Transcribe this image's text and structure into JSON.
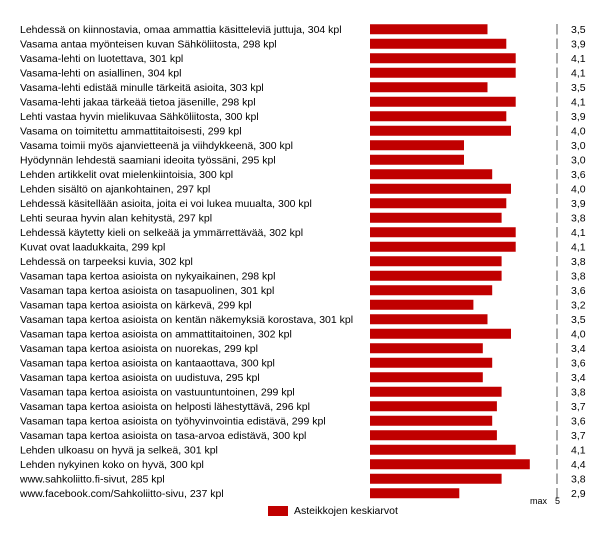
{
  "chart_data": {
    "type": "bar",
    "orientation": "horizontal",
    "categories": [
      "Lehdessä on kiinnostavia, omaa ammattia käsitteleviä juttuja, 304 kpl",
      "Vasama antaa myönteisen kuvan Sähköliitosta, 298 kpl",
      "Vasama-lehti on luotettava, 301 kpl",
      "Vasama-lehti on asiallinen, 304 kpl",
      "Vasama-lehti edistää minulle tärkeitä asioita, 303 kpl",
      "Vasama-lehti jakaa tärkeää tietoa jäsenille, 298 kpl",
      "Lehti vastaa hyvin mielikuvaa Sähköliitosta, 300 kpl",
      "Vasama on toimitettu ammattitaitoisesti, 299 kpl",
      "Vasama toimii myös ajanvietteenä ja viihdykkeenä, 300 kpl",
      "Hyödynnän lehdestä saamiani ideoita työssäni, 295 kpl",
      "Lehden artikkelit ovat mielenkiintoisia, 300 kpl",
      "Lehden sisältö on ajankohtainen, 297 kpl",
      "Lehdessä käsitellään asioita, joita ei voi lukea muualta, 300 kpl",
      "Lehti seuraa hyvin alan kehitystä, 297 kpl",
      "Lehdessä käytetty kieli on selkeää ja ymmärrettävää, 302 kpl",
      "Kuvat ovat laadukkaita, 299 kpl",
      "Lehdessä on tarpeeksi kuvia, 302 kpl",
      "Vasaman tapa kertoa asioista on nykyaikainen, 298 kpl",
      "Vasaman tapa kertoa asioista on tasapuolinen, 301 kpl",
      "Vasaman tapa kertoa asioista on kärkevä, 299 kpl",
      "Vasaman tapa kertoa asioista on kentän näkemyksiä korostava, 301 kpl",
      "Vasaman tapa kertoa asioista on ammattitaitoinen, 302 kpl",
      "Vasaman tapa kertoa asioista on nuorekas, 299 kpl",
      "Vasaman tapa kertoa asioista on kantaaottava, 300 kpl",
      "Vasaman tapa kertoa asioista on uudistuva, 295 kpl",
      "Vasaman tapa kertoa asioista on vastuuntuntoinen, 299 kpl",
      "Vasaman tapa kertoa asioista on helposti lähestyttävä, 296 kpl",
      "Vasaman tapa kertoa asioista on työhyvinvointia edistävä, 299 kpl",
      "Vasaman tapa kertoa asioista on tasa-arvoa edistävä, 300 kpl",
      "Lehden ulkoasu on hyvä ja selkeä, 301 kpl",
      "Lehden nykyinen koko on hyvä, 300 kpl",
      "www.sahkoliitto.fi-sivut, 285 kpl",
      "www.facebook.com/Sahkoliitto-sivu, 237 kpl"
    ],
    "values": [
      3.5,
      3.9,
      4.1,
      4.1,
      3.5,
      4.1,
      3.9,
      4.0,
      3.0,
      3.0,
      3.6,
      4.0,
      3.9,
      3.8,
      4.1,
      4.1,
      3.8,
      3.8,
      3.6,
      3.2,
      3.5,
      4.0,
      3.4,
      3.6,
      3.4,
      3.8,
      3.7,
      3.6,
      3.7,
      4.1,
      4.4,
      3.8,
      2.9
    ],
    "value_labels": [
      "3,5",
      "3,9",
      "4,1",
      "4,1",
      "3,5",
      "4,1",
      "3,9",
      "4,0",
      "3,0",
      "3,0",
      "3,6",
      "4,0",
      "3,9",
      "3,8",
      "4,1",
      "4,1",
      "3,8",
      "3,8",
      "3,6",
      "3,2",
      "3,5",
      "4,0",
      "3,4",
      "3,6",
      "3,4",
      "3,8",
      "3,7",
      "3,6",
      "3,7",
      "4,1",
      "4,4",
      "3,8",
      "2,9"
    ],
    "xlim": [
      1,
      5
    ],
    "axis_max_label": "max",
    "axis_max_value": "5",
    "legend": "Asteikkojen keskiarvot",
    "bar_color": "#c00000",
    "grid": false,
    "legend_position": "bottom"
  }
}
